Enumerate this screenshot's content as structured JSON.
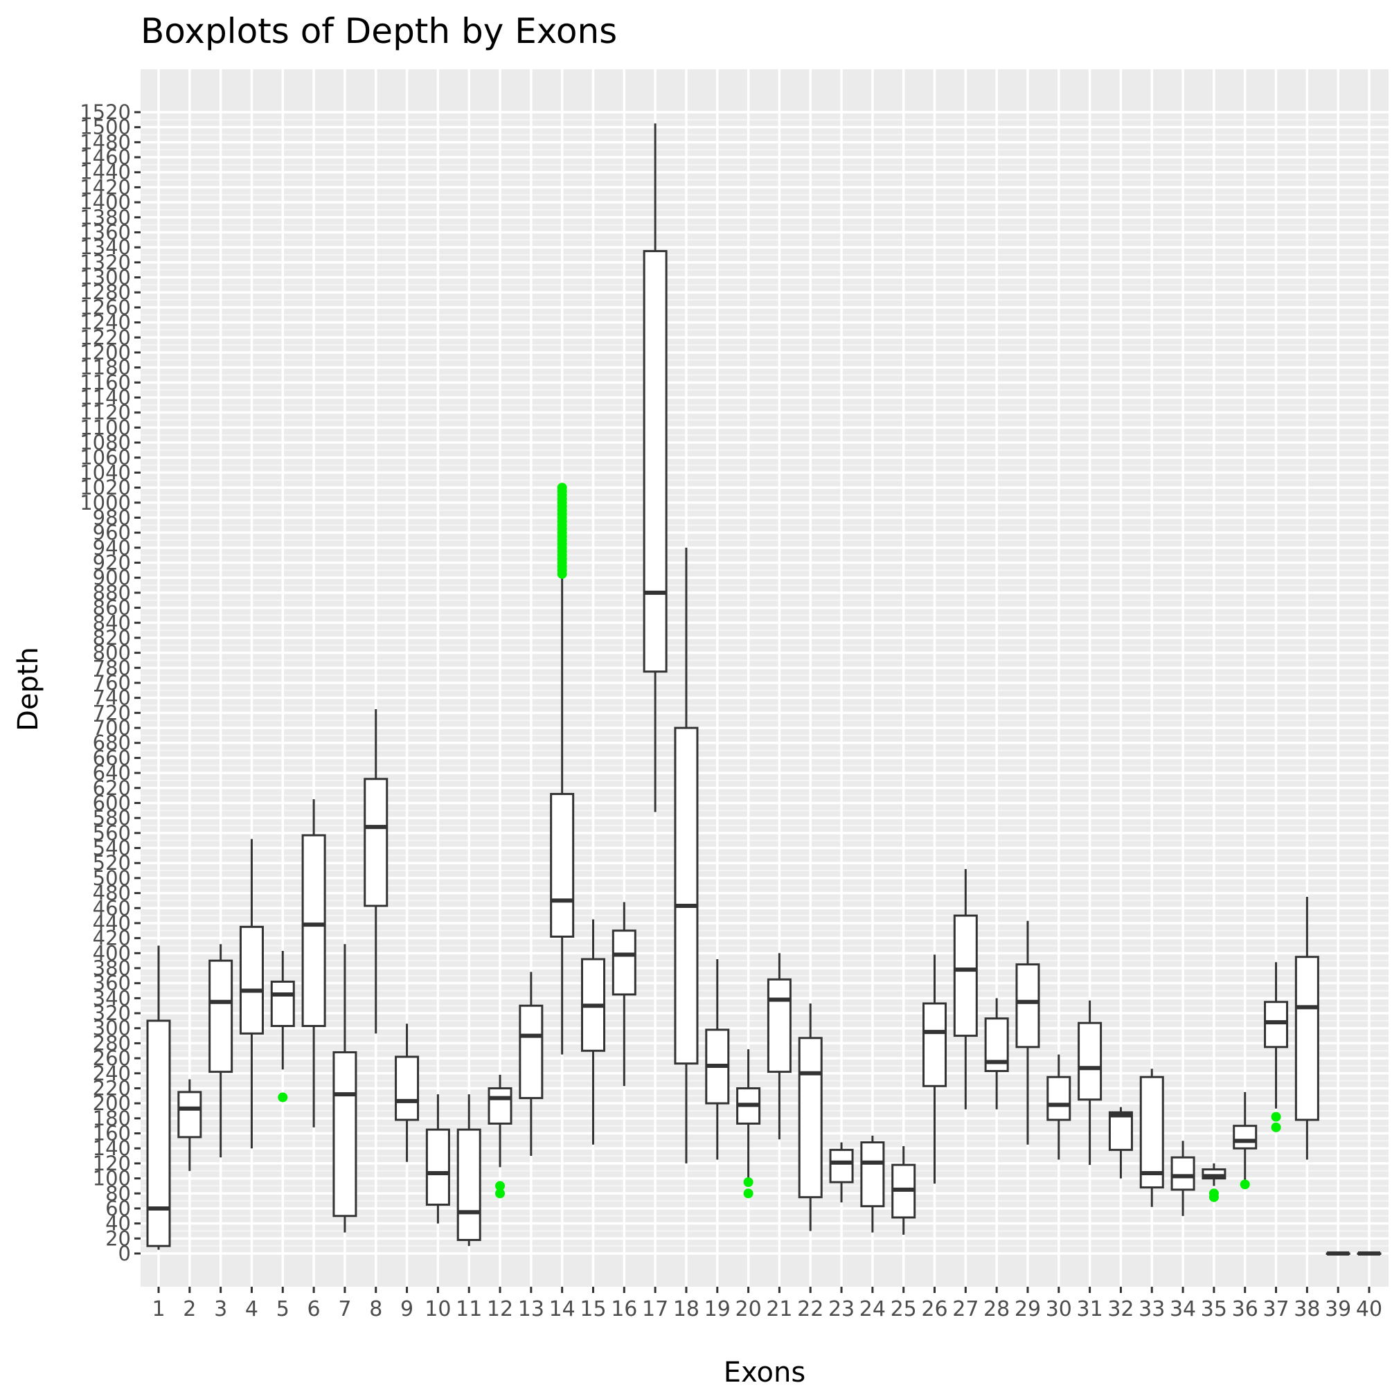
{
  "chart_data": {
    "type": "boxplot",
    "title": "Boxplots of Depth by Exons",
    "xlabel": "Exons",
    "ylabel": "Depth",
    "ylim": [
      -40,
      1540
    ],
    "yticks": [
      0,
      20,
      40,
      60,
      80,
      100,
      120,
      140,
      160,
      180,
      200,
      220,
      240,
      260,
      280,
      300,
      320,
      340,
      360,
      380,
      400,
      420,
      440,
      460,
      480,
      500,
      520,
      540,
      560,
      580,
      600,
      620,
      640,
      660,
      680,
      700,
      720,
      740,
      760,
      780,
      800,
      820,
      840,
      860,
      880,
      900,
      920,
      940,
      960,
      980,
      1000,
      1020,
      1040,
      1060,
      1080,
      1100,
      1120,
      1140,
      1160,
      1180,
      1200,
      1220,
      1240,
      1260,
      1280,
      1300,
      1320,
      1340,
      1360,
      1380,
      1400,
      1420,
      1440,
      1460,
      1480,
      1500,
      1520
    ],
    "categories": [
      "1",
      "2",
      "3",
      "4",
      "5",
      "6",
      "7",
      "8",
      "9",
      "10",
      "11",
      "12",
      "13",
      "14",
      "15",
      "16",
      "17",
      "18",
      "19",
      "20",
      "21",
      "22",
      "23",
      "24",
      "25",
      "26",
      "27",
      "28",
      "29",
      "30",
      "31",
      "32",
      "33",
      "34",
      "35",
      "36",
      "37",
      "38",
      "39",
      "40"
    ],
    "grid": true,
    "outlier_color": "#00ee00",
    "boxes": [
      {
        "exon": "1",
        "min": 5,
        "q1": 10,
        "median": 60,
        "q3": 310,
        "max": 410,
        "outliers": []
      },
      {
        "exon": "2",
        "min": 110,
        "q1": 155,
        "median": 193,
        "q3": 215,
        "max": 232,
        "outliers": []
      },
      {
        "exon": "3",
        "min": 128,
        "q1": 242,
        "median": 335,
        "q3": 390,
        "max": 412,
        "outliers": []
      },
      {
        "exon": "4",
        "min": 140,
        "q1": 293,
        "median": 350,
        "q3": 435,
        "max": 552,
        "outliers": []
      },
      {
        "exon": "5",
        "min": 245,
        "q1": 303,
        "median": 345,
        "q3": 362,
        "max": 403,
        "outliers": [
          208
        ]
      },
      {
        "exon": "6",
        "min": 168,
        "q1": 303,
        "median": 438,
        "q3": 557,
        "max": 605,
        "outliers": []
      },
      {
        "exon": "7",
        "min": 28,
        "q1": 50,
        "median": 212,
        "q3": 268,
        "max": 412,
        "outliers": []
      },
      {
        "exon": "8",
        "min": 293,
        "q1": 463,
        "median": 568,
        "q3": 632,
        "max": 725,
        "outliers": []
      },
      {
        "exon": "9",
        "min": 122,
        "q1": 178,
        "median": 203,
        "q3": 262,
        "max": 306,
        "outliers": []
      },
      {
        "exon": "10",
        "min": 40,
        "q1": 65,
        "median": 107,
        "q3": 165,
        "max": 212,
        "outliers": []
      },
      {
        "exon": "11",
        "min": 10,
        "q1": 18,
        "median": 55,
        "q3": 165,
        "max": 212,
        "outliers": []
      },
      {
        "exon": "12",
        "min": 115,
        "q1": 173,
        "median": 207,
        "q3": 220,
        "max": 238,
        "outliers": [
          80,
          90
        ]
      },
      {
        "exon": "13",
        "min": 130,
        "q1": 207,
        "median": 290,
        "q3": 330,
        "max": 375,
        "outliers": []
      },
      {
        "exon": "14",
        "min": 265,
        "q1": 422,
        "median": 470,
        "q3": 612,
        "max": 905,
        "outliers": [
          905,
          910,
          915,
          920,
          925,
          930,
          935,
          940,
          945,
          950,
          955,
          960,
          965,
          970,
          975,
          980,
          985,
          990,
          995,
          1000,
          1005,
          1010,
          1015,
          1020
        ]
      },
      {
        "exon": "15",
        "min": 145,
        "q1": 270,
        "median": 330,
        "q3": 392,
        "max": 445,
        "outliers": []
      },
      {
        "exon": "16",
        "min": 223,
        "q1": 345,
        "median": 398,
        "q3": 430,
        "max": 468,
        "outliers": []
      },
      {
        "exon": "17",
        "min": 588,
        "q1": 775,
        "median": 880,
        "q3": 1335,
        "max": 1505,
        "outliers": []
      },
      {
        "exon": "18",
        "min": 120,
        "q1": 253,
        "median": 463,
        "q3": 700,
        "max": 940,
        "outliers": []
      },
      {
        "exon": "19",
        "min": 125,
        "q1": 200,
        "median": 250,
        "q3": 298,
        "max": 392,
        "outliers": []
      },
      {
        "exon": "20",
        "min": 100,
        "q1": 173,
        "median": 198,
        "q3": 220,
        "max": 272,
        "outliers": [
          80,
          95
        ]
      },
      {
        "exon": "21",
        "min": 152,
        "q1": 242,
        "median": 338,
        "q3": 365,
        "max": 400,
        "outliers": []
      },
      {
        "exon": "22",
        "min": 30,
        "q1": 75,
        "median": 240,
        "q3": 287,
        "max": 333,
        "outliers": []
      },
      {
        "exon": "23",
        "min": 68,
        "q1": 95,
        "median": 121,
        "q3": 138,
        "max": 148,
        "outliers": []
      },
      {
        "exon": "24",
        "min": 28,
        "q1": 63,
        "median": 121,
        "q3": 148,
        "max": 157,
        "outliers": []
      },
      {
        "exon": "25",
        "min": 25,
        "q1": 48,
        "median": 85,
        "q3": 118,
        "max": 143,
        "outliers": []
      },
      {
        "exon": "26",
        "min": 93,
        "q1": 223,
        "median": 295,
        "q3": 333,
        "max": 398,
        "outliers": []
      },
      {
        "exon": "27",
        "min": 192,
        "q1": 290,
        "median": 378,
        "q3": 450,
        "max": 512,
        "outliers": []
      },
      {
        "exon": "28",
        "min": 192,
        "q1": 243,
        "median": 255,
        "q3": 313,
        "max": 340,
        "outliers": []
      },
      {
        "exon": "29",
        "min": 145,
        "q1": 275,
        "median": 335,
        "q3": 385,
        "max": 443,
        "outliers": []
      },
      {
        "exon": "30",
        "min": 125,
        "q1": 178,
        "median": 198,
        "q3": 235,
        "max": 265,
        "outliers": []
      },
      {
        "exon": "31",
        "min": 118,
        "q1": 205,
        "median": 247,
        "q3": 307,
        "max": 337,
        "outliers": []
      },
      {
        "exon": "32",
        "min": 100,
        "q1": 138,
        "median": 184,
        "q3": 188,
        "max": 195,
        "outliers": []
      },
      {
        "exon": "33",
        "min": 62,
        "q1": 88,
        "median": 107,
        "q3": 235,
        "max": 246,
        "outliers": []
      },
      {
        "exon": "34",
        "min": 50,
        "q1": 85,
        "median": 103,
        "q3": 128,
        "max": 150,
        "outliers": []
      },
      {
        "exon": "35",
        "min": 90,
        "q1": 100,
        "median": 103,
        "q3": 112,
        "max": 120,
        "outliers": [
          75,
          80
        ]
      },
      {
        "exon": "36",
        "min": 92,
        "q1": 140,
        "median": 150,
        "q3": 170,
        "max": 215,
        "outliers": [
          92
        ]
      },
      {
        "exon": "37",
        "min": 193,
        "q1": 275,
        "median": 308,
        "q3": 335,
        "max": 388,
        "outliers": [
          168,
          182
        ]
      },
      {
        "exon": "38",
        "min": 125,
        "q1": 178,
        "median": 328,
        "q3": 395,
        "max": 475,
        "outliers": []
      },
      {
        "exon": "39",
        "min": 0,
        "q1": 0,
        "median": 0,
        "q3": 0,
        "max": 0,
        "outliers": []
      },
      {
        "exon": "40",
        "min": 0,
        "q1": 0,
        "median": 0,
        "q3": 0,
        "max": 0,
        "outliers": []
      }
    ]
  }
}
